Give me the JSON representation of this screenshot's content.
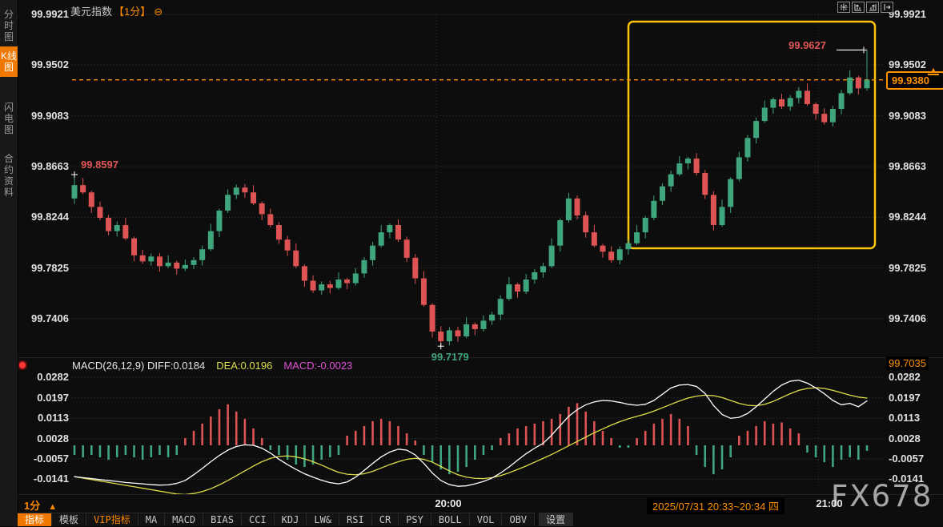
{
  "topbar": {
    "symbol": "美元指数",
    "period": "【1分】",
    "collapse_icon": "⊖"
  },
  "window_controls": [
    {
      "key": "crosshair"
    },
    {
      "key": "zoom-in"
    },
    {
      "key": "zoom-out"
    },
    {
      "key": "pan-right"
    }
  ],
  "sidebar": {
    "items": [
      {
        "key": "time-share-chart",
        "label": "分时图",
        "selected": false
      },
      {
        "key": "candlestick-chart",
        "label": "K线图",
        "selected": true
      },
      {
        "key": "lightning-chart",
        "label": "闪电图",
        "selected": false
      },
      {
        "key": "contract-info",
        "label": "合约资料",
        "selected": false
      }
    ]
  },
  "main_chart": {
    "y_axis": [
      "99.9921",
      "99.9502",
      "99.9083",
      "99.8663",
      "99.8244",
      "99.7825",
      "99.7406"
    ],
    "annotations": {
      "high_left": "99.8597",
      "low": "99.7179",
      "high_right": "99.9627",
      "last_price": "99.9380"
    },
    "colors": {
      "up": "#3fa57c",
      "down": "#de5454",
      "accent": "#ff9000",
      "highlight_box": "#fdc40d"
    },
    "chart_data": {
      "type": "candlestick",
      "first_open": 99.84,
      "closes": [
        99.851,
        99.845,
        99.833,
        99.824,
        99.813,
        99.818,
        99.807,
        99.793,
        99.788,
        99.792,
        99.784,
        99.787,
        99.782,
        99.785,
        99.789,
        99.798,
        99.813,
        99.83,
        99.843,
        99.849,
        99.845,
        99.836,
        99.827,
        99.818,
        99.806,
        99.797,
        99.784,
        99.772,
        99.764,
        99.769,
        99.766,
        99.773,
        99.77,
        99.778,
        99.789,
        99.801,
        99.812,
        99.818,
        99.806,
        99.791,
        99.774,
        99.752,
        99.73,
        99.722,
        99.731,
        99.726,
        99.736,
        99.732,
        99.739,
        99.744,
        99.757,
        99.769,
        99.763,
        99.773,
        99.779,
        99.784,
        99.801,
        99.822,
        99.84,
        99.826,
        99.812,
        99.801,
        99.796,
        99.789,
        99.798,
        99.803,
        99.812,
        99.824,
        99.838,
        99.85,
        99.86,
        99.869,
        99.873,
        99.861,
        99.843,
        99.818,
        99.833,
        99.856,
        99.874,
        99.89,
        99.904,
        99.915,
        99.922,
        99.916,
        99.923,
        99.929,
        99.918,
        99.91,
        99.903,
        99.914,
        99.927,
        99.94,
        99.931,
        99.938
      ],
      "wick_up": [
        0.003,
        0.006,
        0.0015,
        0.0045,
        0.0025
      ],
      "wick_dn": [
        0.0045,
        0.0015,
        0.005,
        0.002,
        0.0035
      ],
      "extremes": {
        "0": {
          "h": 99.8597
        },
        "43": {
          "l": 99.7179
        },
        "93": {
          "h": 99.9627
        }
      }
    }
  },
  "macd_panel": {
    "header": {
      "title": "MACD(26,12,9)",
      "diff": "DIFF:0.0184",
      "dea": "DEA:0.0196",
      "macd": "MACD:-0.0023"
    },
    "y_axis": [
      "0.0282",
      "0.0197",
      "0.0113",
      "0.0028",
      "-0.0057",
      "-0.0141"
    ],
    "right_badge": "99.7035",
    "chart_data": {
      "type": "macd",
      "hist": [
        -0.004,
        -0.005,
        -0.004,
        -0.005,
        -0.006,
        -0.005,
        -0.004,
        -0.005,
        -0.006,
        -0.005,
        -0.004,
        -0.005,
        -0.004,
        0.003,
        0.006,
        0.009,
        0.012,
        0.015,
        0.017,
        0.014,
        0.011,
        0.007,
        0.003,
        -0.002,
        -0.004,
        -0.006,
        -0.008,
        -0.009,
        -0.008,
        -0.006,
        -0.005,
        -0.004,
        0.004,
        0.006,
        0.008,
        0.01,
        0.011,
        0.01,
        0.008,
        0.005,
        0.002,
        -0.004,
        -0.007,
        -0.01,
        -0.012,
        -0.011,
        -0.009,
        -0.006,
        -0.004,
        -0.002,
        0.003,
        0.005,
        0.007,
        0.008,
        0.009,
        0.01,
        0.011,
        0.013,
        0.016,
        0.0175,
        0.014,
        0.01,
        0.006,
        0.003,
        -0.001,
        -0.001,
        0.003,
        0.006,
        0.009,
        0.011,
        0.013,
        0.011,
        0.008,
        -0.004,
        -0.009,
        -0.012,
        -0.01,
        -0.005,
        0.004,
        0.006,
        0.008,
        0.01,
        0.009,
        0.0095,
        0.007,
        0.005,
        -0.003,
        -0.005,
        -0.007,
        -0.009,
        -0.006,
        -0.005,
        -0.006,
        -0.0023
      ],
      "diff": [
        -0.013,
        -0.0134,
        -0.0138,
        -0.0142,
        -0.0146,
        -0.015,
        -0.0154,
        -0.0157,
        -0.016,
        -0.0163,
        -0.0165,
        -0.0164,
        -0.0158,
        -0.0146,
        -0.0122,
        -0.0096,
        -0.0068,
        -0.0042,
        -0.002,
        -0.0005,
        0.0002,
        0.0,
        -0.0012,
        -0.0032,
        -0.0058,
        -0.008,
        -0.01,
        -0.0118,
        -0.0132,
        -0.0145,
        -0.0155,
        -0.016,
        -0.0152,
        -0.0132,
        -0.0104,
        -0.0075,
        -0.0048,
        -0.0028,
        -0.0016,
        -0.002,
        -0.004,
        -0.0075,
        -0.0115,
        -0.0146,
        -0.0163,
        -0.017,
        -0.0168,
        -0.016,
        -0.015,
        -0.0136,
        -0.0115,
        -0.009,
        -0.0062,
        -0.0035,
        -0.0012,
        0.0008,
        0.0042,
        0.0082,
        0.012,
        0.0148,
        0.0168,
        0.018,
        0.0186,
        0.0184,
        0.0178,
        0.017,
        0.0166,
        0.017,
        0.0186,
        0.0212,
        0.0238,
        0.025,
        0.0252,
        0.0244,
        0.0215,
        0.0165,
        0.0128,
        0.0112,
        0.0116,
        0.0132,
        0.016,
        0.0192,
        0.0224,
        0.025,
        0.0266,
        0.027,
        0.0258,
        0.0238,
        0.0214,
        0.0186,
        0.0168,
        0.0174,
        0.016,
        0.0184
      ],
      "dea": [
        -0.013,
        -0.0136,
        -0.0142,
        -0.0148,
        -0.0154,
        -0.016,
        -0.0166,
        -0.0172,
        -0.0178,
        -0.0184,
        -0.019,
        -0.0196,
        -0.0202,
        -0.0204,
        -0.02,
        -0.0192,
        -0.018,
        -0.0164,
        -0.0146,
        -0.0126,
        -0.0106,
        -0.0086,
        -0.0068,
        -0.0054,
        -0.0046,
        -0.0044,
        -0.0048,
        -0.0056,
        -0.0068,
        -0.0082,
        -0.0098,
        -0.0112,
        -0.012,
        -0.0122,
        -0.0118,
        -0.0108,
        -0.0094,
        -0.008,
        -0.0068,
        -0.0058,
        -0.0054,
        -0.0058,
        -0.007,
        -0.0088,
        -0.0106,
        -0.0122,
        -0.0132,
        -0.0137,
        -0.0138,
        -0.0134,
        -0.0126,
        -0.0114,
        -0.01,
        -0.0086,
        -0.007,
        -0.0054,
        -0.0038,
        -0.002,
        -0.0002,
        0.0016,
        0.0034,
        0.0052,
        0.0068,
        0.0084,
        0.0098,
        0.011,
        0.012,
        0.013,
        0.0142,
        0.0156,
        0.017,
        0.0184,
        0.0196,
        0.0204,
        0.0208,
        0.0206,
        0.0198,
        0.0186,
        0.0174,
        0.0166,
        0.0164,
        0.017,
        0.0182,
        0.0198,
        0.0214,
        0.0228,
        0.0236,
        0.0239,
        0.0236,
        0.0228,
        0.0218,
        0.0208,
        0.02,
        0.0196
      ],
      "diff_color": "#ffffff",
      "dea_color": "#dede4a",
      "hist_up": "#de5454",
      "hist_dn": "#3fa57c"
    }
  },
  "time_axis": {
    "labels": [
      {
        "text": "20:00"
      },
      {
        "text": "21:00"
      }
    ],
    "range_text": "2025/07/31 20:33~20:34 四",
    "watermark": "FX678"
  },
  "period_selector": {
    "label": "1分",
    "arrow": "▲"
  },
  "toolbar": {
    "items": [
      {
        "key": "indicator",
        "label": "指标",
        "variant": "selected"
      },
      {
        "key": "template",
        "label": "模板",
        "variant": ""
      },
      {
        "key": "vip-indicator",
        "label": "VIP指标",
        "variant": "vip"
      },
      {
        "key": "ma",
        "label": "MA",
        "variant": ""
      },
      {
        "key": "macd",
        "label": "MACD",
        "variant": ""
      },
      {
        "key": "bias",
        "label": "BIAS",
        "variant": ""
      },
      {
        "key": "cci",
        "label": "CCI",
        "variant": ""
      },
      {
        "key": "kdj",
        "label": "KDJ",
        "variant": ""
      },
      {
        "key": "lw",
        "label": "LW&",
        "variant": ""
      },
      {
        "key": "rsi",
        "label": "RSI",
        "variant": ""
      },
      {
        "key": "cr",
        "label": "CR",
        "variant": ""
      },
      {
        "key": "psy",
        "label": "PSY",
        "variant": ""
      },
      {
        "key": "boll",
        "label": "BOLL",
        "variant": ""
      },
      {
        "key": "vol",
        "label": "VOL",
        "variant": ""
      },
      {
        "key": "obv",
        "label": "OBV",
        "variant": ""
      },
      {
        "key": "settings",
        "label": "设置",
        "variant": "settings"
      }
    ]
  }
}
